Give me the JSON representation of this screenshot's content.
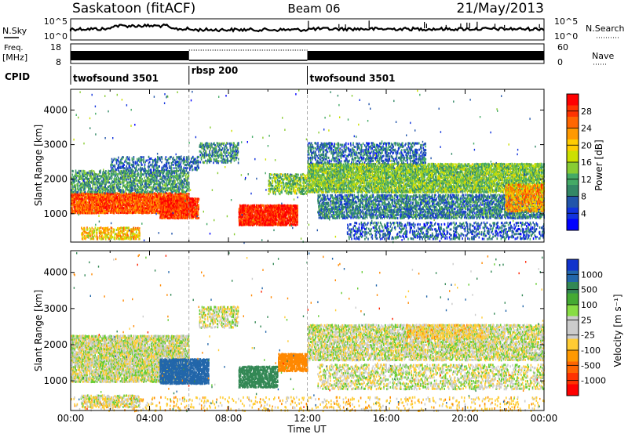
{
  "header": {
    "station": "Saskatoon (fitACF)",
    "beam": "Beam 06",
    "date": "21/May/2013"
  },
  "summary": {
    "nsky_label": "N.Sky",
    "nsearch_label": "N.Search",
    "freq_label_top": "Freq.",
    "freq_label_unit": "[MHz]",
    "nave_label": "Nave",
    "cpid_label": "CPID",
    "nsky_ticks": [
      "10^5",
      "10^0"
    ],
    "nsearch_ticks": [
      "10^5",
      "10^0"
    ],
    "freq_ticks": [
      "18",
      "8"
    ],
    "nave_ticks": [
      "60",
      "0"
    ],
    "cpid_segments": [
      {
        "name": "twofsound 3501",
        "start_h": 0,
        "end_h": 6
      },
      {
        "name": "rbsp 200",
        "start_h": 6,
        "end_h": 12
      },
      {
        "name": "twofsound 3501",
        "start_h": 12,
        "end_h": 24
      }
    ]
  },
  "chart_data": [
    {
      "type": "heatmap",
      "panel": "power",
      "ylabel": "Slant Range [km]",
      "colorbar_label": "Power [dB]",
      "colorbar_ticks": [
        "28",
        "24",
        "20",
        "16",
        "12",
        "8",
        "4"
      ],
      "colorbar_colors": [
        "#ff0000",
        "#ff3300",
        "#ff6600",
        "#ff9900",
        "#ffcc00",
        "#cce000",
        "#88cc33",
        "#44aa66",
        "#338866",
        "#2255aa",
        "#1133dd",
        "#0000ff"
      ],
      "ylim": [
        180,
        4600
      ],
      "yticks": [
        "4000",
        "3000",
        "2000",
        "1000"
      ],
      "yticks_values": [
        4000,
        3000,
        2000,
        1000
      ],
      "xlim_h": [
        0,
        24
      ],
      "regions": [
        {
          "h0": 0.0,
          "h1": 6.0,
          "r0": 1050,
          "r1": 1650,
          "db": 24,
          "fill": 0.9
        },
        {
          "h0": 0.0,
          "h1": 6.0,
          "r0": 1650,
          "r1": 2300,
          "db": 9,
          "fill": 0.55
        },
        {
          "h0": 0.5,
          "h1": 3.5,
          "r0": 300,
          "r1": 650,
          "db": 18,
          "fill": 0.5
        },
        {
          "h0": 2.0,
          "h1": 6.5,
          "r0": 2300,
          "r1": 2700,
          "db": 6,
          "fill": 0.35
        },
        {
          "h0": 4.5,
          "h1": 6.5,
          "r0": 900,
          "r1": 1500,
          "db": 26,
          "fill": 0.85
        },
        {
          "h0": 6.5,
          "h1": 8.5,
          "r0": 2500,
          "r1": 3100,
          "db": 8,
          "fill": 0.45
        },
        {
          "h0": 8.5,
          "h1": 11.5,
          "r0": 700,
          "r1": 1300,
          "db": 27,
          "fill": 0.9
        },
        {
          "h0": 10.0,
          "h1": 12.0,
          "r0": 1600,
          "r1": 2200,
          "db": 12,
          "fill": 0.5
        },
        {
          "h0": 12.0,
          "h1": 24.0,
          "r0": 1650,
          "r1": 2500,
          "db": 12,
          "fill": 0.75
        },
        {
          "h0": 12.0,
          "h1": 18.0,
          "r0": 2500,
          "r1": 3100,
          "db": 6,
          "fill": 0.4
        },
        {
          "h0": 12.5,
          "h1": 24.0,
          "r0": 900,
          "r1": 1600,
          "db": 7,
          "fill": 0.55
        },
        {
          "h0": 14.0,
          "h1": 24.0,
          "r0": 300,
          "r1": 800,
          "db": 5,
          "fill": 0.3
        },
        {
          "h0": 22.0,
          "h1": 24.0,
          "r0": 1100,
          "r1": 1900,
          "db": 20,
          "fill": 0.6
        }
      ]
    },
    {
      "type": "heatmap",
      "panel": "velocity",
      "ylabel": "Slant Range [km]",
      "xlabel": "Time UT",
      "colorbar_label": "Velocity [m s⁻¹]",
      "colorbar_ticks": [
        "1000",
        "500",
        "100",
        "25",
        "-25",
        "-100",
        "-500",
        "-1000"
      ],
      "colorbar_colors": [
        "#1133cc",
        "#2266aa",
        "#338855",
        "#44aa33",
        "#88dd44",
        "#cccccc",
        "#cccccc",
        "#ffcc33",
        "#ff9900",
        "#ff6600",
        "#ff3300",
        "#ff0000"
      ],
      "ylim": [
        180,
        4600
      ],
      "yticks": [
        "4000",
        "3000",
        "2000",
        "1000"
      ],
      "yticks_values": [
        4000,
        3000,
        2000,
        1000
      ],
      "xlim_h": [
        0,
        24
      ],
      "xticks": [
        "00:00",
        "04:00",
        "08:00",
        "12:00",
        "16:00",
        "20:00",
        "00:00"
      ],
      "xticks_h": [
        0,
        4,
        8,
        12,
        16,
        20,
        24
      ],
      "regions": [
        {
          "h0": 0.0,
          "h1": 6.0,
          "r0": 1000,
          "r1": 2300,
          "v": 0,
          "fill": 0.75
        },
        {
          "h0": 0.5,
          "h1": 3.5,
          "r0": 300,
          "r1": 650,
          "v": 0,
          "fill": 0.5
        },
        {
          "h0": 4.5,
          "h1": 7.0,
          "r0": 950,
          "r1": 1650,
          "v": 400,
          "fill": 0.85
        },
        {
          "h0": 6.5,
          "h1": 8.5,
          "r0": 2500,
          "r1": 3100,
          "v": 0,
          "fill": 0.45
        },
        {
          "h0": 8.5,
          "h1": 10.5,
          "r0": 850,
          "r1": 1450,
          "v": 150,
          "fill": 0.75
        },
        {
          "h0": 10.5,
          "h1": 12.0,
          "r0": 1300,
          "r1": 1800,
          "v": -300,
          "fill": 0.85
        },
        {
          "h0": 12.0,
          "h1": 24.0,
          "r0": 1600,
          "r1": 2600,
          "v": 0,
          "fill": 0.6
        },
        {
          "h0": 12.5,
          "h1": 24.0,
          "r0": 800,
          "r1": 1500,
          "v": 0,
          "fill": 0.35
        },
        {
          "h0": 17.0,
          "h1": 21.0,
          "r0": 2200,
          "r1": 2600,
          "v": -60,
          "fill": 0.35
        },
        {
          "h0": 0.0,
          "h1": 24.0,
          "r0": 200,
          "r1": 600,
          "v": -60,
          "fill": 0.12
        }
      ]
    }
  ]
}
